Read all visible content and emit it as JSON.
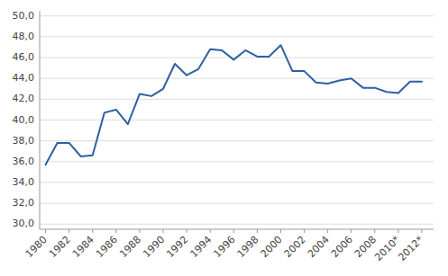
{
  "chart_data": {
    "type": "line",
    "x": [
      1980,
      1981,
      1982,
      1983,
      1984,
      1985,
      1986,
      1987,
      1988,
      1989,
      1990,
      1991,
      1992,
      1993,
      1994,
      1995,
      1996,
      1997,
      1998,
      1999,
      2000,
      2001,
      2002,
      2003,
      2004,
      2005,
      2006,
      2007,
      2008,
      2009,
      2010,
      2011,
      2012
    ],
    "values": [
      35.7,
      37.8,
      37.8,
      36.5,
      36.6,
      40.7,
      41.0,
      39.6,
      42.5,
      42.3,
      43.0,
      45.4,
      44.3,
      44.9,
      46.8,
      46.7,
      45.8,
      46.7,
      46.1,
      46.1,
      47.2,
      44.7,
      44.7,
      43.6,
      43.5,
      43.8,
      44.0,
      43.1,
      43.1,
      42.7,
      42.6,
      43.7,
      43.7
    ],
    "color": "#2E5FA3",
    "xlim": [
      1979.5,
      2013.0
    ],
    "xticks": [
      1980,
      1982,
      1984,
      1986,
      1988,
      1990,
      1992,
      1994,
      1996,
      1998,
      2000,
      2002,
      2004,
      2006,
      2008,
      {
        "value": 2010,
        "label": "2010*"
      },
      {
        "value": 2012,
        "label": "2012*"
      }
    ],
    "ylim": [
      29.5,
      50.5
    ],
    "yticks": [
      {
        "value": 30,
        "label": "30,0"
      },
      {
        "value": 32,
        "label": "32,0"
      },
      {
        "value": 34,
        "label": "34,0"
      },
      {
        "value": 36,
        "label": "36,0"
      },
      {
        "value": 38,
        "label": "38,0"
      },
      {
        "value": 40,
        "label": "40,0"
      },
      {
        "value": 42,
        "label": "42,0"
      },
      {
        "value": 44,
        "label": "44,0"
      },
      {
        "value": 46,
        "label": "46,0"
      },
      {
        "value": 48,
        "label": "48,0"
      },
      {
        "value": 50,
        "label": "50,0"
      }
    ],
    "grid": true
  }
}
